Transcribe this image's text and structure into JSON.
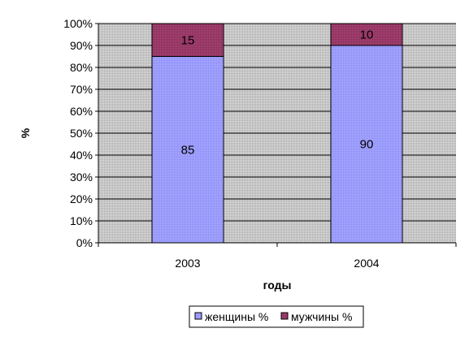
{
  "chart_data": {
    "type": "bar",
    "stacked": true,
    "percent_stacked": true,
    "categories": [
      "2003",
      "2004"
    ],
    "series": [
      {
        "name": "женщины %",
        "values": [
          85,
          90
        ],
        "color": "#9999FF"
      },
      {
        "name": "мужчины %",
        "values": [
          15,
          10
        ],
        "color": "#993366"
      }
    ],
    "xlabel": "годы",
    "ylabel": "%",
    "ylim": [
      0,
      100
    ],
    "yticks": [
      "0%",
      "10%",
      "20%",
      "30%",
      "40%",
      "50%",
      "60%",
      "70%",
      "80%",
      "90%",
      "100%"
    ],
    "grid": true,
    "legend_position": "bottom",
    "plot_background": "#C0C0C0",
    "gridline_color": "#000000"
  }
}
